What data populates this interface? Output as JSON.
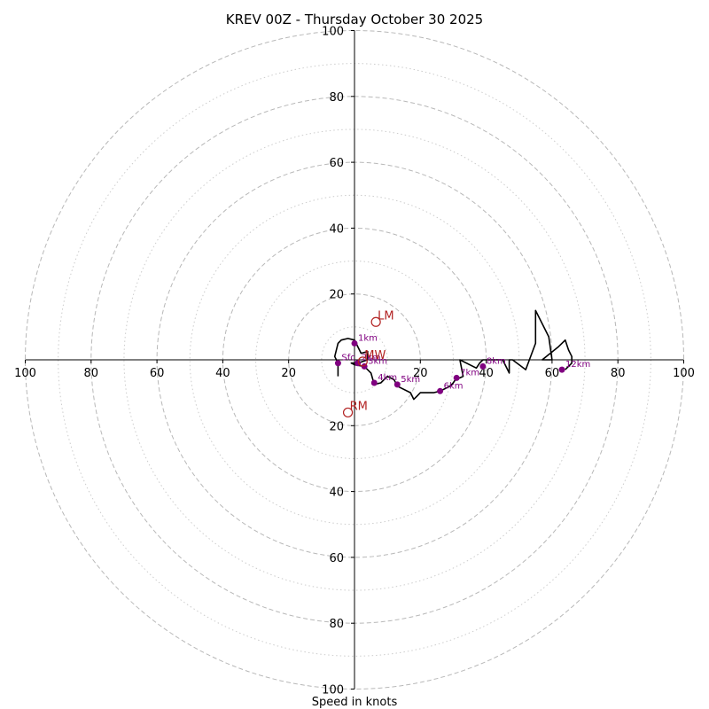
{
  "chart_data": {
    "type": "hodograph",
    "title": "KREV 00Z - Thursday October 30 2025",
    "xlabel": "Speed in knots",
    "range": [
      -100,
      100
    ],
    "major_rings": [
      20,
      40,
      60,
      80,
      100
    ],
    "minor_rings": [
      10,
      30,
      50,
      70,
      90
    ],
    "x_tick_labels": [
      "100",
      "80",
      "60",
      "40",
      "20",
      "20",
      "40",
      "60",
      "80",
      "100"
    ],
    "x_tick_values": [
      -100,
      -80,
      -60,
      -40,
      -20,
      20,
      40,
      60,
      80,
      100
    ],
    "y_tick_labels": [
      "100",
      "80",
      "60",
      "40",
      "20",
      "20",
      "40",
      "60",
      "80",
      "100"
    ],
    "y_tick_values": [
      100,
      80,
      60,
      40,
      20,
      -20,
      -40,
      -60,
      -80,
      -100
    ],
    "trace_color": "#000000",
    "marker_color": "#800080",
    "motion_color": "#b22222",
    "trace": [
      [
        -5,
        -5
      ],
      [
        -5,
        -1
      ],
      [
        -6,
        1
      ],
      [
        -5,
        5
      ],
      [
        -4,
        6
      ],
      [
        -2,
        6.5
      ],
      [
        0,
        6
      ],
      [
        1,
        4
      ],
      [
        2,
        2
      ],
      [
        4,
        2.5
      ],
      [
        4,
        0
      ],
      [
        1,
        -1
      ],
      [
        -1,
        -1
      ],
      [
        0,
        -1.5
      ],
      [
        3,
        -2
      ],
      [
        5,
        -4
      ],
      [
        6,
        -7.5
      ],
      [
        8,
        -7
      ],
      [
        10,
        -5
      ],
      [
        12,
        -6
      ],
      [
        13,
        -8
      ],
      [
        17,
        -10
      ],
      [
        18,
        -12
      ],
      [
        19,
        -11
      ],
      [
        20,
        -10
      ],
      [
        22,
        -10
      ],
      [
        24,
        -10
      ],
      [
        26,
        -9.5
      ],
      [
        28,
        -8.5
      ],
      [
        29,
        -8
      ],
      [
        30,
        -7
      ],
      [
        31,
        -5.5
      ],
      [
        32,
        -5.5
      ],
      [
        33,
        -5
      ],
      [
        32,
        0
      ],
      [
        37,
        -2.5
      ],
      [
        38,
        -1
      ],
      [
        39,
        0
      ],
      [
        45,
        0
      ],
      [
        47,
        -4
      ],
      [
        47,
        0
      ],
      [
        48,
        0
      ],
      [
        52,
        -3
      ],
      [
        55,
        5
      ],
      [
        55,
        15
      ],
      [
        59,
        7
      ],
      [
        60,
        0
      ],
      [
        57,
        0
      ],
      [
        62,
        4
      ],
      [
        64,
        6
      ],
      [
        65,
        3
      ],
      [
        66,
        1
      ],
      [
        66,
        -1
      ],
      [
        64,
        -3
      ]
    ],
    "height_markers": [
      {
        "label": "Sfc",
        "u": -5,
        "v": -1
      },
      {
        "label": "1km",
        "u": 0,
        "v": 5
      },
      {
        "label": "2km",
        "u": 1,
        "v": -1
      },
      {
        "label": "3km",
        "u": 3,
        "v": -2
      },
      {
        "label": "4km",
        "u": 6,
        "v": -7
      },
      {
        "label": "5km",
        "u": 13,
        "v": -7.5
      },
      {
        "label": "6km",
        "u": 26,
        "v": -9.5
      },
      {
        "label": "7km",
        "u": 31,
        "v": -5.5
      },
      {
        "label": "8km",
        "u": 39,
        "v": -2
      },
      {
        "label": "12km",
        "u": 63,
        "v": -3
      }
    ],
    "motion_markers": [
      {
        "label": "LM",
        "u": 6.5,
        "v": 11.5
      },
      {
        "label": "RM",
        "u": -2,
        "v": -16
      },
      {
        "label": "MW",
        "u": 2.5,
        "v": -0.5
      }
    ]
  }
}
